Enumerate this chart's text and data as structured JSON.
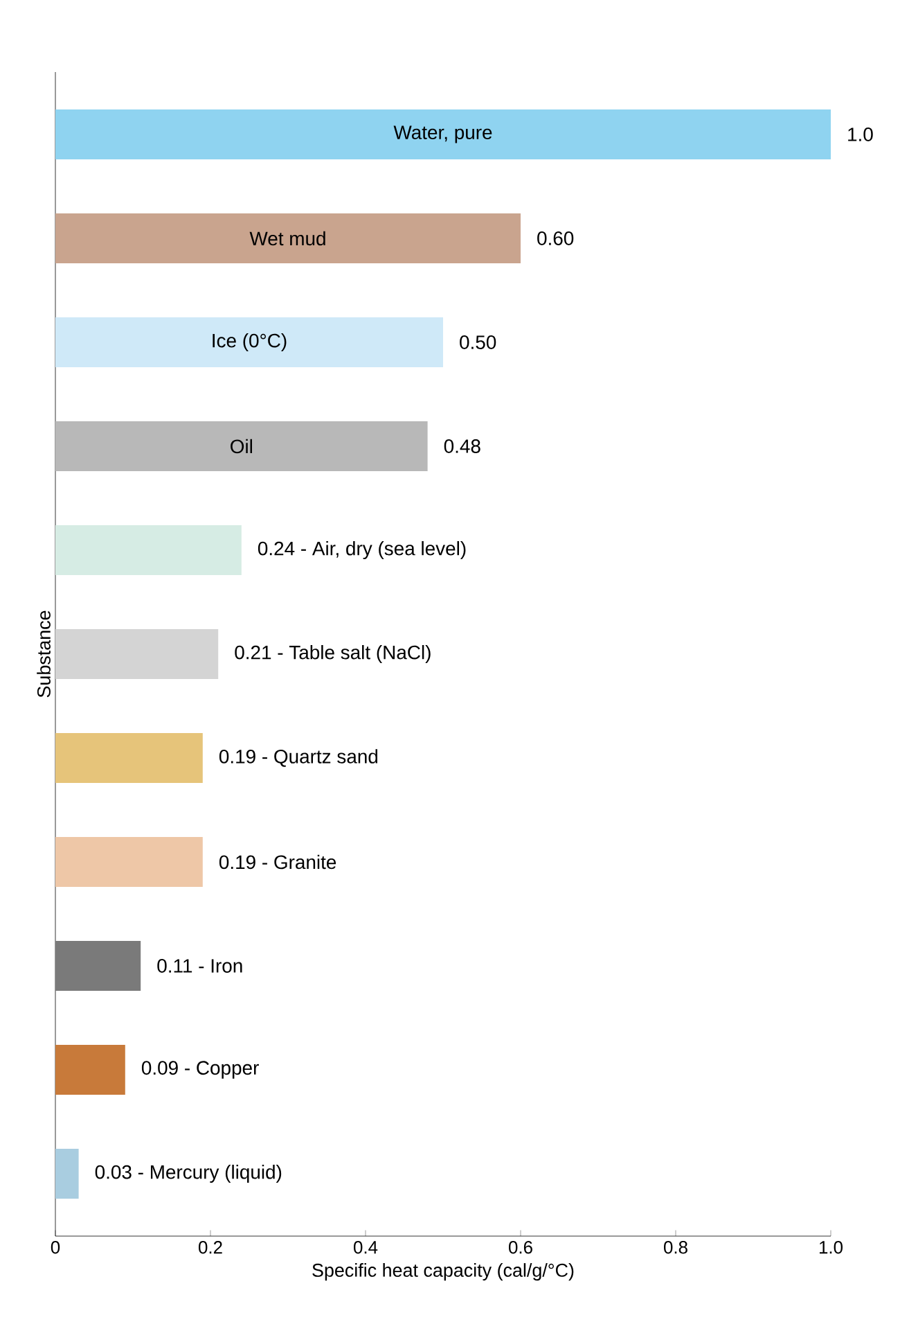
{
  "chart_data": {
    "type": "bar",
    "orientation": "horizontal",
    "xlabel": "Specific heat capacity (cal/g/°C)",
    "ylabel": "Substance",
    "categories": [
      "Water, pure",
      "Wet mud",
      "Ice (0°C)",
      "Oil",
      null,
      null,
      null,
      null,
      null,
      null,
      null
    ],
    "values": [
      1.0,
      0.6,
      0.5,
      0.48,
      0.24,
      0.21,
      0.19,
      0.19,
      0.11,
      0.09,
      0.03
    ],
    "value_labels": [
      "1.0",
      "0.60",
      "0.50",
      "0.48",
      "0.24 - Air, dry (sea level)",
      "0.21 - Table salt (NaCl)",
      "0.19 - Quartz sand",
      "0.19 - Granite",
      "0.11 - Iron",
      "0.09 - Copper",
      "0.03 - Mercury (liquid)"
    ],
    "colors": [
      "#8fd3f0",
      "#c9a48e",
      "#cfe9f8",
      "#b8b8b8",
      "#d6ece4",
      "#d4d4d4",
      "#e6c47a",
      "#eec7a7",
      "#7a7a7a",
      "#c87a3a",
      "#a9cde0"
    ],
    "xlim": [
      0,
      1.0
    ],
    "xticks": [
      0,
      0.2,
      0.4,
      0.6,
      0.8,
      {
        "value": 1.0,
        "label": "1.0"
      }
    ]
  }
}
